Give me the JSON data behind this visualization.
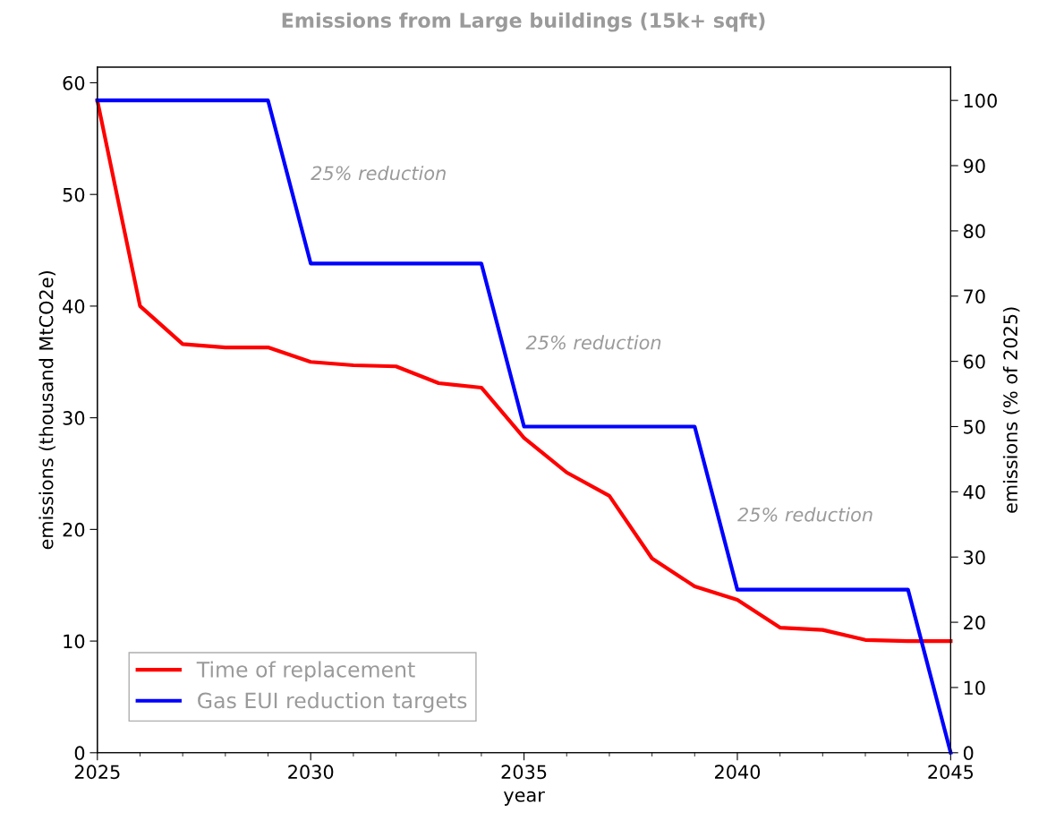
{
  "chart_data": {
    "type": "line",
    "title": "Emissions from Large buildings (15k+ sqft)",
    "xlabel": "year",
    "ylabel": "emissions (thousand MtCO2e)",
    "y2label": "emissions (% of 2025)",
    "x": [
      2025,
      2026,
      2027,
      2028,
      2029,
      2030,
      2031,
      2032,
      2033,
      2034,
      2035,
      2036,
      2037,
      2038,
      2039,
      2040,
      2041,
      2042,
      2043,
      2044,
      2045
    ],
    "series": [
      {
        "name": "Time of replacement",
        "color": "#ff0000",
        "values": [
          58.4,
          40.0,
          36.6,
          36.3,
          36.3,
          35.0,
          34.7,
          34.6,
          33.1,
          32.7,
          28.2,
          25.1,
          23.0,
          17.4,
          14.9,
          13.7,
          11.2,
          11.0,
          10.1,
          10.0,
          10.0
        ]
      },
      {
        "name": "Gas EUI reduction targets",
        "color": "#0000ff",
        "axis": "y2",
        "values": [
          100,
          100,
          100,
          100,
          100,
          75,
          75,
          75,
          75,
          75,
          50,
          50,
          50,
          50,
          50,
          25,
          25,
          25,
          25,
          25,
          0
        ]
      }
    ],
    "xlim": [
      2025,
      2045
    ],
    "xticks": [
      2025,
      {
        "value": 2026,
        "label": null
      },
      {
        "value": 2027,
        "label": null
      },
      {
        "value": 2028,
        "label": null
      },
      {
        "value": 2029,
        "label": null
      },
      2030,
      {
        "value": 2031,
        "label": null
      },
      {
        "value": 2032,
        "label": null
      },
      {
        "value": 2033,
        "label": null
      },
      {
        "value": 2034,
        "label": null
      },
      2035,
      {
        "value": 2036,
        "label": null
      },
      {
        "value": 2037,
        "label": null
      },
      {
        "value": 2038,
        "label": null
      },
      {
        "value": 2039,
        "label": null
      },
      2040,
      {
        "value": 2041,
        "label": null
      },
      {
        "value": 2042,
        "label": null
      },
      {
        "value": 2043,
        "label": null
      },
      {
        "value": 2044,
        "label": null
      },
      2045
    ],
    "ylim": [
      0,
      61.4
    ],
    "yticks": [
      0,
      10,
      20,
      30,
      40,
      50,
      60
    ],
    "y2lim": [
      0,
      105.1
    ],
    "y2ticks": [
      0,
      10,
      20,
      30,
      40,
      50,
      60,
      70,
      80,
      90,
      100
    ],
    "annotations": [
      "25% reduction",
      "25% reduction",
      "25% reduction"
    ],
    "legend": "bottom left",
    "grid": false,
    "marker": "none",
    "line_style": "solid"
  }
}
